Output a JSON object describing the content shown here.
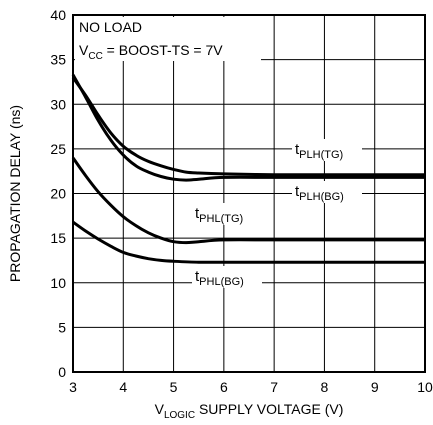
{
  "chart_data": {
    "type": "line",
    "title": "",
    "xlabel": {
      "pre": "V",
      "sub": "LOGIC",
      "post": " SUPPLY VOLTAGE (V)"
    },
    "ylabel": "PROPAGATION DELAY (ns)",
    "xlim": [
      3,
      10
    ],
    "ylim": [
      0,
      40
    ],
    "xticks": [
      3,
      4,
      5,
      6,
      7,
      8,
      9,
      10
    ],
    "yticks": [
      0,
      5,
      10,
      15,
      20,
      25,
      30,
      35,
      40
    ],
    "grid": true,
    "annotation": {
      "line1": "NO LOAD",
      "line2_pre": "V",
      "line2_sub": "CC",
      "line2_post": " = BOOST-TS = 7V"
    },
    "series": [
      {
        "name": "tPLH(TG)",
        "label_main": "t",
        "label_sub": "PLH(TG)",
        "x": [
          3,
          3.25,
          3.5,
          3.75,
          4,
          4.25,
          4.5,
          4.75,
          5,
          5.25,
          5.5,
          6,
          7,
          8,
          9,
          10
        ],
        "y": [
          33,
          31,
          28.8,
          26.8,
          25.3,
          24.3,
          23.6,
          23.1,
          22.7,
          22.4,
          22.3,
          22.2,
          22.1,
          22.1,
          22.1,
          22.1
        ]
      },
      {
        "name": "tPLH(BG)",
        "label_main": "t",
        "label_sub": "PLH(BG)",
        "x": [
          3,
          3.25,
          3.5,
          3.75,
          4,
          4.25,
          4.5,
          4.75,
          5,
          5.25,
          5.5,
          6,
          7,
          8,
          9,
          10
        ],
        "y": [
          33.3,
          30.8,
          28.2,
          26,
          24.3,
          23.1,
          22.4,
          21.9,
          21.6,
          21.5,
          21.6,
          21.8,
          21.8,
          21.8,
          21.8,
          21.8
        ]
      },
      {
        "name": "tPHL(TG)",
        "label_main": "t",
        "label_sub": "PHL(TG)",
        "x": [
          3,
          3.25,
          3.5,
          3.75,
          4,
          4.25,
          4.5,
          4.75,
          5,
          5.25,
          5.5,
          6,
          7,
          8,
          9,
          10
        ],
        "y": [
          24,
          22,
          20.2,
          18.7,
          17.4,
          16.4,
          15.6,
          15,
          14.6,
          14.5,
          14.6,
          14.8,
          14.8,
          14.8,
          14.8,
          14.8
        ]
      },
      {
        "name": "tPHL(BG)",
        "label_main": "t",
        "label_sub": "PHL(BG)",
        "x": [
          3,
          3.25,
          3.5,
          3.75,
          4,
          4.25,
          4.5,
          4.75,
          5,
          5.5,
          6,
          7,
          8,
          9,
          10
        ],
        "y": [
          16.8,
          15.8,
          14.9,
          14.1,
          13.4,
          13,
          12.7,
          12.5,
          12.4,
          12.3,
          12.3,
          12.3,
          12.3,
          12.3,
          12.3
        ]
      }
    ]
  }
}
